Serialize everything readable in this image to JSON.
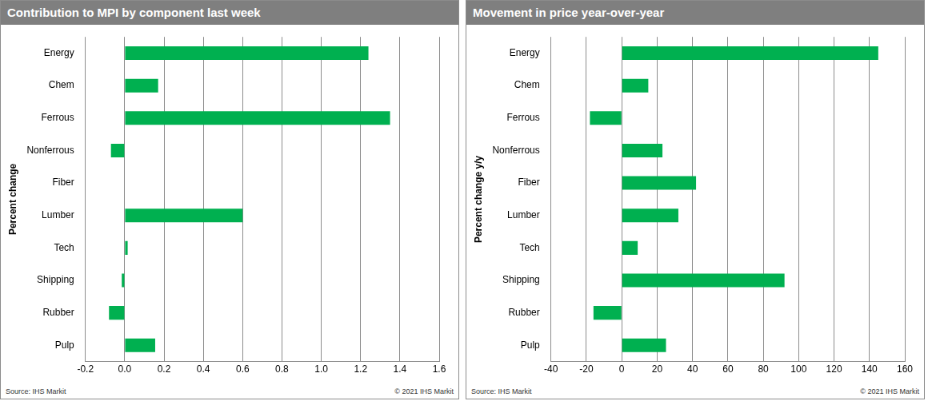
{
  "chart_data": [
    {
      "type": "bar",
      "orientation": "horizontal",
      "title": "Contribution to MPI by component last week",
      "ylabel": "Percent change",
      "source": "Source: IHS Markit",
      "copyright": "© 2021 IHS Markit",
      "categories": [
        "Energy",
        "Chem",
        "Ferrous",
        "Nonferrous",
        "Fiber",
        "Lumber",
        "Tech",
        "Shipping",
        "Rubber",
        "Pulp"
      ],
      "values": [
        1.24,
        0.17,
        1.35,
        -0.07,
        0,
        0.6,
        0.015,
        -0.015,
        -0.08,
        0.155
      ],
      "color": "#00b050",
      "xlim": [
        -0.2,
        1.6
      ],
      "xticks": [
        -0.2,
        {
          "value": 0,
          "label": "0.0"
        },
        0.2,
        0.4,
        0.6,
        0.8,
        {
          "value": 1,
          "label": "1.0"
        },
        1.2,
        1.4,
        1.6
      ],
      "grid": true
    },
    {
      "type": "bar",
      "orientation": "horizontal",
      "title": "Movement in price year-over-year",
      "ylabel": "Percent change y/y",
      "source": "Source: IHS Markit",
      "copyright": "© 2021 IHS Markit",
      "categories": [
        "Energy",
        "Chem",
        "Ferrous",
        "Nonferrous",
        "Fiber",
        "Lumber",
        "Tech",
        "Shipping",
        "Rubber",
        "Pulp"
      ],
      "values": [
        145,
        15,
        -18,
        23,
        42,
        32,
        9,
        92,
        -16,
        25
      ],
      "color": "#00b050",
      "xlim": [
        -40,
        160
      ],
      "xticks": [
        -40,
        -20,
        0,
        20,
        40,
        60,
        80,
        100,
        120,
        140,
        160
      ],
      "grid": true
    }
  ]
}
